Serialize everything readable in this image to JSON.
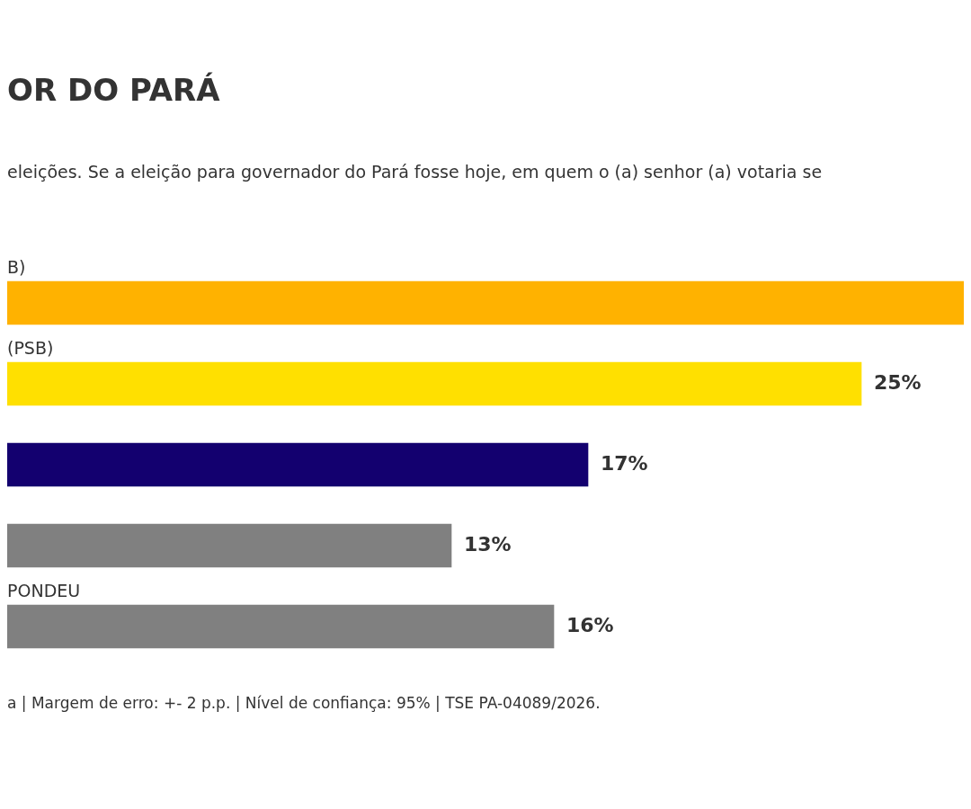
{
  "chart_data": {
    "type": "bar",
    "orientation": "horizontal",
    "title": "OR DO PARÁ",
    "subtitle": "eleições. Se a eleição para governador do Pará fosse hoje, em quem o (a) senhor (a) votaria se",
    "categories": [
      "B)",
      "(PSB)",
      null,
      null,
      "PONDEU"
    ],
    "values": [
      28,
      25,
      17,
      13,
      16
    ],
    "colors": [
      "#ffb200",
      "#ffe000",
      "#13006f",
      "#808080",
      "#808080"
    ],
    "value_labels": [
      null,
      "25%",
      "17%",
      "13%",
      "16%"
    ],
    "annotations": [
      "a | Margem de erro: +- 2 p.p. | Nível de confiança: 95% | TSE PA-04089/2026."
    ],
    "legend": false
  }
}
